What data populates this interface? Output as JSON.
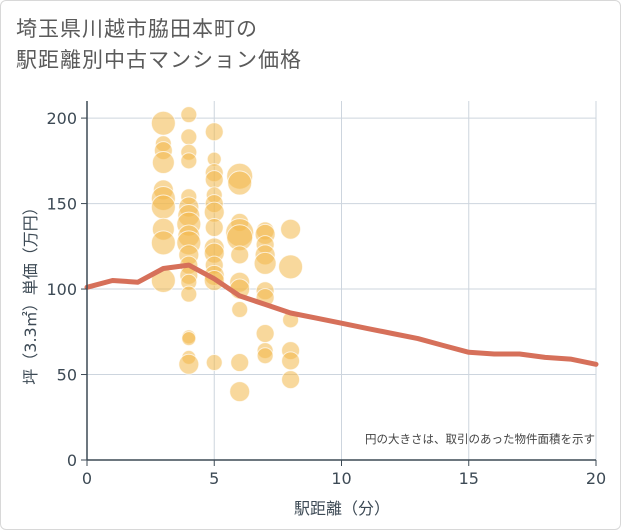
{
  "title_line1": "埼玉県川越市脇田本町の",
  "title_line2": "駅距離別中古マンション価格",
  "note": "円の大きさは、取引のあった物件面積を示す",
  "colors": {
    "bubble": "#f2b84b",
    "line": "#d6705a",
    "grid": "#cdd5de",
    "axis": "#3d4a55"
  },
  "chart_data": {
    "type": "scatter",
    "xlabel": "駅距離（分）",
    "ylabel": "坪（3.3㎡）単価（万円）",
    "xlim": [
      0,
      20
    ],
    "ylim": [
      0,
      210
    ],
    "xticks": [
      "0",
      "5",
      "10",
      "15",
      "20"
    ],
    "yticks": [
      "0",
      "50",
      "100",
      "150",
      "200"
    ],
    "points": [
      {
        "x": 3,
        "y": 197,
        "s": 12
      },
      {
        "x": 3,
        "y": 185,
        "s": 8
      },
      {
        "x": 3,
        "y": 181,
        "s": 9
      },
      {
        "x": 3,
        "y": 174,
        "s": 11
      },
      {
        "x": 3,
        "y": 158,
        "s": 10
      },
      {
        "x": 3,
        "y": 153,
        "s": 12
      },
      {
        "x": 3,
        "y": 148,
        "s": 12
      },
      {
        "x": 3,
        "y": 135,
        "s": 11
      },
      {
        "x": 3,
        "y": 127,
        "s": 12
      },
      {
        "x": 3,
        "y": 105,
        "s": 12
      },
      {
        "x": 4,
        "y": 202,
        "s": 8
      },
      {
        "x": 4,
        "y": 189,
        "s": 8
      },
      {
        "x": 4,
        "y": 180,
        "s": 8
      },
      {
        "x": 4,
        "y": 175,
        "s": 8
      },
      {
        "x": 4,
        "y": 154,
        "s": 8
      },
      {
        "x": 4,
        "y": 148,
        "s": 10
      },
      {
        "x": 4,
        "y": 143,
        "s": 11
      },
      {
        "x": 4,
        "y": 138,
        "s": 12
      },
      {
        "x": 4,
        "y": 131,
        "s": 11
      },
      {
        "x": 4,
        "y": 127,
        "s": 12
      },
      {
        "x": 4,
        "y": 120,
        "s": 10
      },
      {
        "x": 4,
        "y": 114,
        "s": 9
      },
      {
        "x": 4,
        "y": 108,
        "s": 9
      },
      {
        "x": 4,
        "y": 104,
        "s": 8
      },
      {
        "x": 4,
        "y": 97,
        "s": 8
      },
      {
        "x": 4,
        "y": 72,
        "s": 7
      },
      {
        "x": 4,
        "y": 71,
        "s": 7
      },
      {
        "x": 4,
        "y": 60,
        "s": 7
      },
      {
        "x": 4,
        "y": 56,
        "s": 10
      },
      {
        "x": 5,
        "y": 192,
        "s": 9
      },
      {
        "x": 5,
        "y": 176,
        "s": 7
      },
      {
        "x": 5,
        "y": 168,
        "s": 9
      },
      {
        "x": 5,
        "y": 164,
        "s": 9
      },
      {
        "x": 5,
        "y": 155,
        "s": 8
      },
      {
        "x": 5,
        "y": 150,
        "s": 9
      },
      {
        "x": 5,
        "y": 145,
        "s": 10
      },
      {
        "x": 5,
        "y": 136,
        "s": 9
      },
      {
        "x": 5,
        "y": 124,
        "s": 10
      },
      {
        "x": 5,
        "y": 121,
        "s": 10
      },
      {
        "x": 5,
        "y": 114,
        "s": 9
      },
      {
        "x": 5,
        "y": 108,
        "s": 10
      },
      {
        "x": 5,
        "y": 105,
        "s": 10
      },
      {
        "x": 5,
        "y": 57,
        "s": 8
      },
      {
        "x": 6,
        "y": 166,
        "s": 13
      },
      {
        "x": 6,
        "y": 162,
        "s": 12
      },
      {
        "x": 6,
        "y": 139,
        "s": 9
      },
      {
        "x": 6,
        "y": 133,
        "s": 14
      },
      {
        "x": 6,
        "y": 130,
        "s": 13
      },
      {
        "x": 6,
        "y": 120,
        "s": 9
      },
      {
        "x": 6,
        "y": 104,
        "s": 10
      },
      {
        "x": 6,
        "y": 100,
        "s": 10
      },
      {
        "x": 6,
        "y": 88,
        "s": 8
      },
      {
        "x": 6,
        "y": 57,
        "s": 9
      },
      {
        "x": 6,
        "y": 40,
        "s": 10
      },
      {
        "x": 7,
        "y": 134,
        "s": 9
      },
      {
        "x": 7,
        "y": 132,
        "s": 10
      },
      {
        "x": 7,
        "y": 126,
        "s": 9
      },
      {
        "x": 7,
        "y": 120,
        "s": 10
      },
      {
        "x": 7,
        "y": 115,
        "s": 11
      },
      {
        "x": 7,
        "y": 99,
        "s": 9
      },
      {
        "x": 7,
        "y": 95,
        "s": 9
      },
      {
        "x": 7,
        "y": 74,
        "s": 9
      },
      {
        "x": 7,
        "y": 64,
        "s": 8
      },
      {
        "x": 7,
        "y": 61,
        "s": 8
      },
      {
        "x": 8,
        "y": 135,
        "s": 10
      },
      {
        "x": 8,
        "y": 113,
        "s": 12
      },
      {
        "x": 8,
        "y": 82,
        "s": 8
      },
      {
        "x": 8,
        "y": 64,
        "s": 9
      },
      {
        "x": 8,
        "y": 58,
        "s": 9
      },
      {
        "x": 8,
        "y": 47,
        "s": 9
      }
    ],
    "line": {
      "x": [
        0,
        1,
        2,
        3,
        4,
        5,
        6,
        7,
        8,
        9,
        10,
        11,
        12,
        13,
        14,
        15,
        16,
        17,
        18,
        19,
        20
      ],
      "y": [
        101,
        105,
        104,
        112,
        114,
        106,
        96,
        91,
        86,
        83,
        80,
        77,
        74,
        71,
        67,
        63,
        62,
        62,
        60,
        59,
        56
      ]
    }
  }
}
